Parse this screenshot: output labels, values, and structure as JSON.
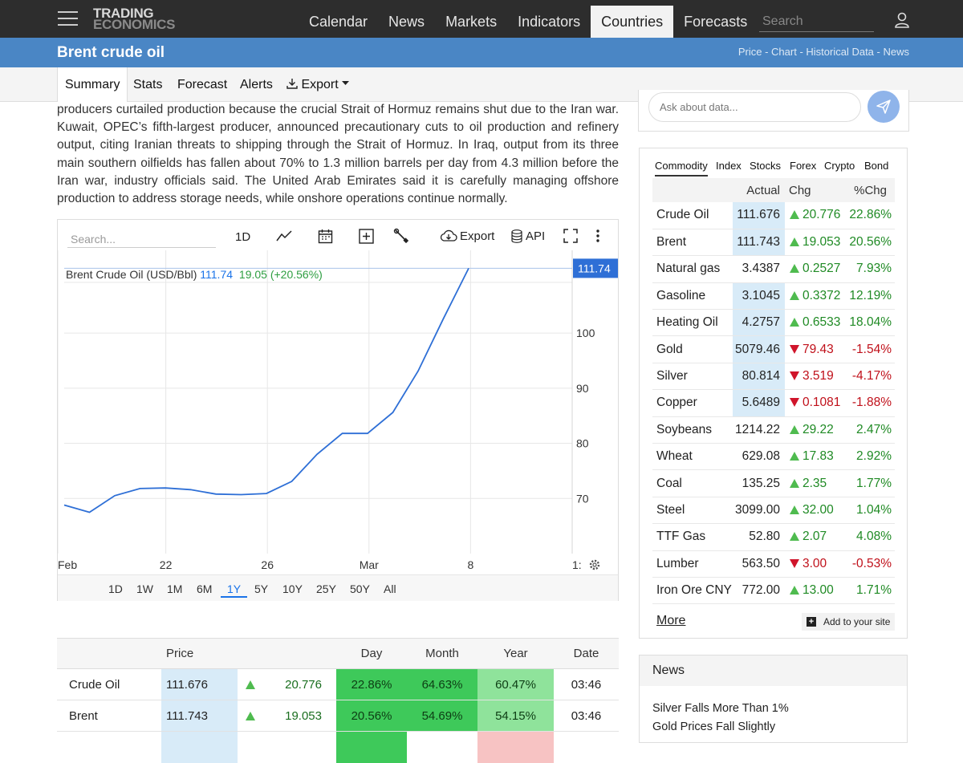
{
  "nav": {
    "logo_line1": "TRADING",
    "logo_line2": "ECONOMICS",
    "links": [
      "Calendar",
      "News",
      "Markets",
      "Indicators",
      "Countries",
      "Forecasts"
    ],
    "active_link": "Countries",
    "search_placeholder": "Search"
  },
  "title": {
    "text": "Brent crude oil",
    "links": [
      "Price",
      "Chart",
      "Historical Data",
      "News"
    ],
    "separator": " - "
  },
  "subtabs": {
    "summary": "Summary",
    "stats": "Stats",
    "forecast": "Forecast",
    "alerts": "Alerts",
    "export": "Export"
  },
  "article": {
    "text": "producers curtailed production because the crucial Strait of Hormuz remains shut due to the Iran war. Kuwait, OPEC’s fifth-largest producer, announced precautionary cuts to oil production and refinery output, citing Iranian threats to shipping through the Strait of Hormuz. In Iraq, output from its three main southern oilfields has fallen about 70% to 1.3 million barrels per day from 4.3 million before the Iran war, industry officials said. The United Arab Emirates said it is carefully managing offshore production to address storage needs, while onshore operations continue normally."
  },
  "chart_toolbar": {
    "search_placeholder": "Search...",
    "range_label": "1D",
    "export_label": "Export",
    "api_label": "API"
  },
  "chart_data": {
    "type": "line",
    "legend_name": "Brent Crude Oil (USD/Bbl)",
    "legend_value": "111.74",
    "legend_change": "19.05 (+20.56%)",
    "last_value_label": "111.74",
    "x_tick_labels": [
      "Feb",
      "22",
      "26",
      "Mar",
      "8",
      "1:"
    ],
    "y_tick_labels": [
      "70",
      "80",
      "90",
      "100"
    ],
    "ylim": [
      60,
      115
    ],
    "series": [
      {
        "values": [
          68.8,
          67.5,
          70.5,
          71.8,
          71.9,
          71.6,
          70.8,
          70.7,
          70.9,
          73.1,
          78.0,
          81.8,
          81.8,
          85.6,
          93.1,
          102.6,
          111.74
        ]
      }
    ],
    "line_color": "#2e6fd6",
    "grid": true
  },
  "chart_ranges": {
    "items": [
      "1D",
      "1W",
      "1M",
      "6M",
      "1Y",
      "5Y",
      "10Y",
      "25Y",
      "50Y",
      "All"
    ],
    "active": "1Y"
  },
  "bottom_table": {
    "headers": [
      "Price",
      "Day",
      "Month",
      "Year",
      "Date"
    ],
    "rows": [
      {
        "name": "Crude Oil",
        "price": "111.676",
        "chg": "20.776",
        "day": "22.86%",
        "month": "64.63%",
        "year": "60.47%",
        "date": "03:46"
      },
      {
        "name": "Brent",
        "price": "111.743",
        "chg": "19.053",
        "day": "20.56%",
        "month": "54.69%",
        "year": "54.15%",
        "date": "03:46"
      }
    ]
  },
  "ask": {
    "placeholder": "Ask about data..."
  },
  "commodities": {
    "tabs": [
      "Commodity",
      "Index",
      "Stocks",
      "Forex",
      "Crypto",
      "Bond"
    ],
    "active_tab": "Commodity",
    "headers": [
      "Actual",
      "Chg",
      "%Chg"
    ],
    "rows": [
      {
        "name": "Crude Oil",
        "actual": "111.676",
        "chg": "20.776",
        "pct": "22.86%",
        "dir": "up",
        "hl": true
      },
      {
        "name": "Brent",
        "actual": "111.743",
        "chg": "19.053",
        "pct": "20.56%",
        "dir": "up",
        "hl": true
      },
      {
        "name": "Natural gas",
        "actual": "3.4387",
        "chg": "0.2527",
        "pct": "7.93%",
        "dir": "up",
        "hl": false
      },
      {
        "name": "Gasoline",
        "actual": "3.1045",
        "chg": "0.3372",
        "pct": "12.19%",
        "dir": "up",
        "hl": true
      },
      {
        "name": "Heating Oil",
        "actual": "4.2757",
        "chg": "0.6533",
        "pct": "18.04%",
        "dir": "up",
        "hl": true
      },
      {
        "name": "Gold",
        "actual": "5079.46",
        "chg": "79.43",
        "pct": "-1.54%",
        "dir": "down",
        "hl": true
      },
      {
        "name": "Silver",
        "actual": "80.814",
        "chg": "3.519",
        "pct": "-4.17%",
        "dir": "down",
        "hl": true
      },
      {
        "name": "Copper",
        "actual": "5.6489",
        "chg": "0.1081",
        "pct": "-1.88%",
        "dir": "down",
        "hl": true
      },
      {
        "name": "Soybeans",
        "actual": "1214.22",
        "chg": "29.22",
        "pct": "2.47%",
        "dir": "up",
        "hl": false
      },
      {
        "name": "Wheat",
        "actual": "629.08",
        "chg": "17.83",
        "pct": "2.92%",
        "dir": "up",
        "hl": false
      },
      {
        "name": "Coal",
        "actual": "135.25",
        "chg": "2.35",
        "pct": "1.77%",
        "dir": "up",
        "hl": false
      },
      {
        "name": "Steel",
        "actual": "3099.00",
        "chg": "32.00",
        "pct": "1.04%",
        "dir": "up",
        "hl": false
      },
      {
        "name": "TTF Gas",
        "actual": "52.80",
        "chg": "2.07",
        "pct": "4.08%",
        "dir": "up",
        "hl": false
      },
      {
        "name": "Lumber",
        "actual": "563.50",
        "chg": "3.00",
        "pct": "-0.53%",
        "dir": "down",
        "hl": false
      },
      {
        "name": "Iron Ore CNY",
        "actual": "772.00",
        "chg": "13.00",
        "pct": "1.71%",
        "dir": "up",
        "hl": false
      }
    ],
    "more_label": "More",
    "add_label": "Add to your site"
  },
  "news": {
    "header": "News",
    "items": [
      "Silver Falls More Than 1%",
      "Gold Prices Fall Slightly"
    ]
  },
  "colors": {
    "topbar": "#2d2d2d",
    "titlebar": "#4a86c5",
    "up": "#1f8a24",
    "down": "#c0101a",
    "highlight_blue": "#d8ebf8",
    "green_strong": "#3ec95a",
    "green_light": "#8fe39b",
    "pink": "#f7c3c3"
  }
}
